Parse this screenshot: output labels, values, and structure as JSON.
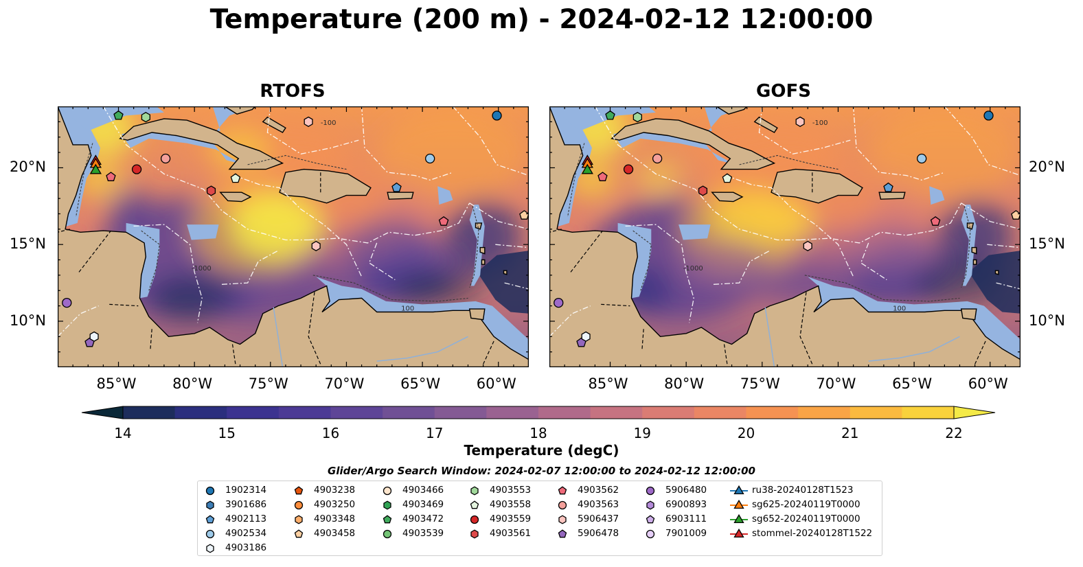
{
  "title": "Temperature (200 m) - 2024-02-12 12:00:00",
  "panels": [
    {
      "title": "RTOFS"
    },
    {
      "title": "GOFS"
    }
  ],
  "map": {
    "lon_range": [
      -89,
      -58
    ],
    "lat_range": [
      7,
      24
    ],
    "lon_ticks": [
      "85°W",
      "80°W",
      "75°W",
      "70°W",
      "65°W",
      "60°W"
    ],
    "lat_ticks": [
      "20°N",
      "15°N",
      "10°N"
    ],
    "contour_labels": [
      "-100",
      "-1000",
      "100"
    ],
    "colors": {
      "land": "#d2b48c",
      "shelf": "#95b4e0",
      "deep": "#0c2432"
    }
  },
  "colorbar": {
    "ticks": [
      "14",
      "15",
      "16",
      "17",
      "18",
      "19",
      "20",
      "21",
      "22"
    ],
    "label": "Temperature (degC)",
    "colors": [
      "#0a2838",
      "#1d2d5c",
      "#2b2f7e",
      "#3c3390",
      "#4c3a95",
      "#5e4597",
      "#705095",
      "#845a94",
      "#9a6291",
      "#b06a8a",
      "#c67381",
      "#da7c74",
      "#ea8664",
      "#f59252",
      "#f9a446",
      "#fbba3f",
      "#f9d23c",
      "#f4ea47"
    ],
    "extend": "both"
  },
  "search_window": "Glider/Argo Search Window: 2024-02-07 12:00:00 to 2024-02-12 12:00:00",
  "legend": {
    "columns": [
      [
        {
          "label": "1902314",
          "marker": "circle",
          "color": "#1f77b4"
        },
        {
          "label": "3901686",
          "marker": "hexagon",
          "color": "#3d7db5"
        },
        {
          "label": "4902113",
          "marker": "pentagon",
          "color": "#5e9fd6"
        },
        {
          "label": "4902534",
          "marker": "circle",
          "color": "#9ecae9"
        },
        {
          "label": "4903186",
          "marker": "hexagon",
          "color": "#eef5fb"
        }
      ],
      [
        {
          "label": "4903238",
          "marker": "pentagon",
          "color": "#e6550d"
        },
        {
          "label": "4903250",
          "marker": "circle",
          "color": "#fd8d3c"
        },
        {
          "label": "4903348",
          "marker": "hexagon",
          "color": "#fdae6b"
        },
        {
          "label": "4903458",
          "marker": "pentagon",
          "color": "#fdd0a2"
        }
      ],
      [
        {
          "label": "4903466",
          "marker": "circle",
          "color": "#fee6ce"
        },
        {
          "label": "4903469",
          "marker": "hexagon",
          "color": "#31a354"
        },
        {
          "label": "4903472",
          "marker": "pentagon",
          "color": "#41ab5d"
        },
        {
          "label": "4903539",
          "marker": "circle",
          "color": "#74c476"
        }
      ],
      [
        {
          "label": "4903553",
          "marker": "hexagon",
          "color": "#a1d99b"
        },
        {
          "label": "4903558",
          "marker": "pentagon",
          "color": "#e5f5e0"
        },
        {
          "label": "4903559",
          "marker": "circle",
          "color": "#d62728"
        },
        {
          "label": "4903561",
          "marker": "hexagon",
          "color": "#de4a4a"
        }
      ],
      [
        {
          "label": "4903562",
          "marker": "pentagon",
          "color": "#ef6a7a"
        },
        {
          "label": "4903563",
          "marker": "circle",
          "color": "#f4a09b"
        },
        {
          "label": "5906437",
          "marker": "hexagon",
          "color": "#fcc5c0"
        },
        {
          "label": "5906478",
          "marker": "pentagon",
          "color": "#9467bd"
        }
      ],
      [
        {
          "label": "5906480",
          "marker": "circle",
          "color": "#9e6ac8"
        },
        {
          "label": "6900893",
          "marker": "hexagon",
          "color": "#b48bd9"
        },
        {
          "label": "6903111",
          "marker": "pentagon",
          "color": "#cdaee9"
        },
        {
          "label": "7901009",
          "marker": "circle",
          "color": "#e6cff7"
        }
      ],
      [
        {
          "label": "ru38-20240128T1523",
          "marker": "triangle",
          "color": "#1f77b4"
        },
        {
          "label": "sg625-20240119T0000",
          "marker": "triangle",
          "color": "#ff7f0e"
        },
        {
          "label": "sg652-20240119T0000",
          "marker": "triangle",
          "color": "#2ca02c"
        },
        {
          "label": "stommel-20240128T1522",
          "marker": "triangle",
          "color": "#d62728"
        }
      ]
    ]
  },
  "floats": [
    {
      "label": "1902314",
      "lon": -60.1,
      "lat": 23.4
    },
    {
      "label": "4902534",
      "lon": -64.5,
      "lat": 20.6
    },
    {
      "label": "4902113",
      "lon": -66.7,
      "lat": 18.7
    },
    {
      "label": "4903458",
      "lon": -58.3,
      "lat": 16.9
    },
    {
      "label": "4903562",
      "lon": -63.6,
      "lat": 16.5
    },
    {
      "label": "5906437",
      "lon": -72.0,
      "lat": 14.9
    },
    {
      "label": "4903561",
      "lon": -78.9,
      "lat": 18.5
    },
    {
      "label": "4903558",
      "lon": -77.3,
      "lat": 19.3
    },
    {
      "label": "4903563",
      "lon": -81.9,
      "lat": 20.6
    },
    {
      "label": "4903559",
      "lon": -83.8,
      "lat": 19.9
    },
    {
      "label": "4903562",
      "lon": -85.5,
      "lat": 19.4
    },
    {
      "label": "5906437",
      "lon": -72.5,
      "lat": 23.0
    },
    {
      "label": "4903553",
      "lon": -83.2,
      "lat": 23.3
    },
    {
      "label": "4903472",
      "lon": -85.0,
      "lat": 23.4
    },
    {
      "label": "5906480",
      "lon": -88.4,
      "lat": 11.2
    },
    {
      "label": "5906478",
      "lon": -86.9,
      "lat": 8.6
    },
    {
      "label": "4903186",
      "lon": -86.6,
      "lat": 9.0
    }
  ],
  "gliders": [
    {
      "label": "stommel-20240128T1522",
      "lon": -86.5,
      "lat": 20.5
    },
    {
      "label": "sg625-20240119T0000",
      "lon": -86.5,
      "lat": 20.3
    },
    {
      "label": "sg652-20240119T0000",
      "lon": -86.5,
      "lat": 19.9
    }
  ]
}
